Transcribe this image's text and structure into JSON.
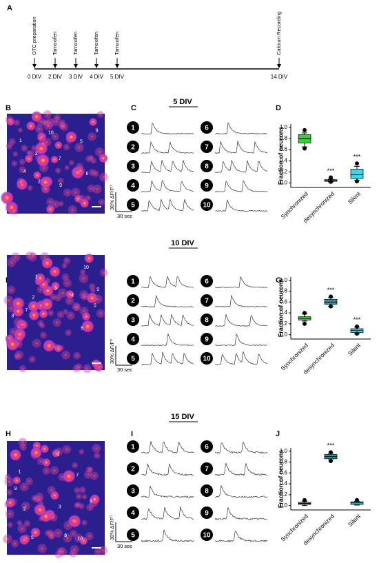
{
  "panel_a": {
    "label": "A",
    "events": [
      {
        "top": "OTC preparation",
        "day": "0 DIV"
      },
      {
        "top": "Tamoxifen",
        "day": "2 DIV"
      },
      {
        "top": "Tamoxifen",
        "day": "3 DIV"
      },
      {
        "top": "Tamoxifen",
        "day": "4 DIV"
      },
      {
        "top": "Tamoxifen",
        "day": "5 DIV"
      }
    ],
    "end": {
      "top": "Calcium Recording",
      "day": "14 DIV"
    }
  },
  "rows": [
    {
      "day_title": "5 DIV",
      "image_label": "B",
      "traces_label": "C",
      "chart_label": "D",
      "cell_labels": [
        "1",
        "2",
        "3",
        "4",
        "5",
        "6",
        "7",
        "8",
        "9",
        "10"
      ],
      "trace_numbers": [
        "1",
        "2",
        "3",
        "4",
        "5",
        "6",
        "7",
        "8",
        "9",
        "10"
      ],
      "scale_y": "30% ΔF/F⁰",
      "scale_x": "30 sec"
    },
    {
      "day_title": "10 DIV",
      "image_label": "E",
      "traces_label": "F",
      "chart_label": "G",
      "cell_labels": [
        "1",
        "2",
        "3",
        "4",
        "5",
        "6",
        "7",
        "8",
        "9",
        "10"
      ],
      "trace_numbers": [
        "1",
        "2",
        "3",
        "4",
        "5",
        "6",
        "7",
        "8",
        "9",
        "10"
      ],
      "scale_y": "30% ΔF/F⁰",
      "scale_x": "30 sec"
    },
    {
      "day_title": "15 DIV",
      "image_label": "H",
      "traces_label": "I",
      "chart_label": "J",
      "cell_labels": [
        "1",
        "2",
        "3",
        "4",
        "5",
        "6",
        "7",
        "8",
        "9",
        "10"
      ],
      "trace_numbers": [
        "1",
        "2",
        "3",
        "4",
        "5",
        "6",
        "7",
        "8",
        "9",
        "10"
      ],
      "scale_y": "30% ΔF/F⁰",
      "scale_x": "30 sec"
    }
  ],
  "chart_data": [
    {
      "type": "box",
      "ylabel": "Fraction of neurons",
      "categories": [
        "Synchronized",
        "desynchronized",
        "Silent"
      ],
      "colors": [
        "#3ccf3c",
        "#1f9aa6",
        "#3ad8ea"
      ],
      "significance": [
        null,
        "***",
        "***"
      ],
      "boxes": [
        {
          "min": 0.65,
          "q1": 0.72,
          "median": 0.8,
          "q3": 0.87,
          "max": 0.9,
          "outliers": [
            0.95,
            0.62
          ]
        },
        {
          "min": 0.02,
          "q1": 0.03,
          "median": 0.04,
          "q3": 0.06,
          "max": 0.07,
          "outliers": [
            0.1,
            0.02
          ]
        },
        {
          "min": 0.05,
          "q1": 0.08,
          "median": 0.15,
          "q3": 0.25,
          "max": 0.3,
          "outliers": [
            0.35,
            0.03
          ]
        }
      ],
      "ylim": [
        -0.08,
        1.06
      ],
      "yticks": [
        {
          "value": 0,
          "label": "0.0"
        },
        {
          "value": 0.2,
          "label": "0.2"
        },
        {
          "value": 0.4,
          "label": "0.4"
        },
        {
          "value": 0.6,
          "label": "0.6"
        },
        {
          "value": 0.8,
          "label": "0.8"
        },
        {
          "value": 1,
          "label": "1.0"
        }
      ]
    },
    {
      "type": "box",
      "ylabel": "Fraction of neurons",
      "categories": [
        "Synchronized",
        "desynchronized",
        "Silent"
      ],
      "colors": [
        "#3ccf3c",
        "#1f9aa6",
        "#3ad8ea"
      ],
      "significance": [
        null,
        "***",
        "***"
      ],
      "boxes": [
        {
          "min": 0.25,
          "q1": 0.27,
          "median": 0.3,
          "q3": 0.33,
          "max": 0.38,
          "outliers": [
            0.4,
            0.2
          ]
        },
        {
          "min": 0.52,
          "q1": 0.56,
          "median": 0.6,
          "q3": 0.65,
          "max": 0.68,
          "outliers": [
            0.7,
            0.52
          ]
        },
        {
          "min": 0.02,
          "q1": 0.04,
          "median": 0.08,
          "q3": 0.11,
          "max": 0.14,
          "outliers": [
            0.15,
            0.02
          ]
        }
      ],
      "ylim": [
        -0.08,
        1.06
      ],
      "yticks": [
        {
          "value": 0,
          "label": "0.0"
        },
        {
          "value": 0.2,
          "label": "0.2"
        },
        {
          "value": 0.4,
          "label": "0.4"
        },
        {
          "value": 0.6,
          "label": "0.6"
        },
        {
          "value": 0.8,
          "label": "0.8"
        },
        {
          "value": 1,
          "label": "1.0"
        }
      ]
    },
    {
      "type": "box",
      "ylabel": "Fraction of neurons",
      "categories": [
        "Synchronized",
        "desynchronized",
        "Silent"
      ],
      "colors": [
        "#3ccf3c",
        "#1f9aa6",
        "#3ad8ea"
      ],
      "significance": [
        null,
        "***",
        null
      ],
      "boxes": [
        {
          "min": 0,
          "q1": 0.02,
          "median": 0.04,
          "q3": 0.06,
          "max": 0.08,
          "outliers": [
            0.1
          ]
        },
        {
          "min": 0.84,
          "q1": 0.86,
          "median": 0.9,
          "q3": 0.94,
          "max": 0.96,
          "outliers": [
            0.98,
            0.82
          ]
        },
        {
          "min": 0.01,
          "q1": 0.02,
          "median": 0.05,
          "q3": 0.07,
          "max": 0.08,
          "outliers": [
            0.1
          ]
        }
      ],
      "ylim": [
        -0.08,
        1.06
      ],
      "yticks": [
        {
          "value": 0,
          "label": "0.0"
        },
        {
          "value": 0.2,
          "label": "0.2"
        },
        {
          "value": 0.4,
          "label": "0.4"
        },
        {
          "value": 0.6,
          "label": "0.6"
        },
        {
          "value": 0.8,
          "label": "0.8"
        },
        {
          "value": 1,
          "label": "1.0"
        }
      ]
    }
  ]
}
